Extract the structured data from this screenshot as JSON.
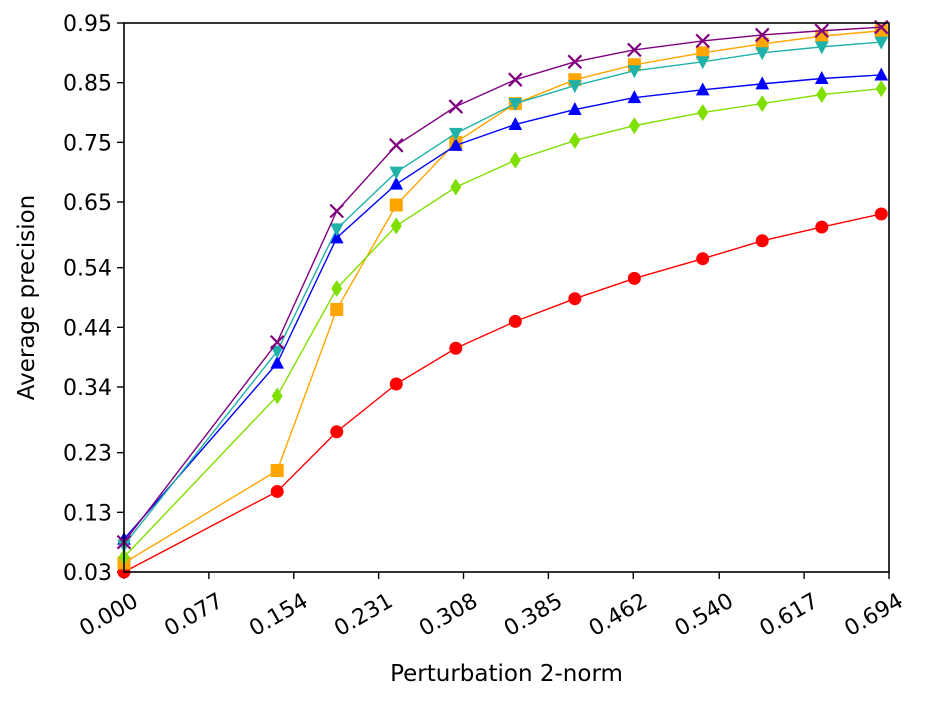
{
  "chart_data": {
    "type": "line",
    "title": "",
    "xlabel": "Perturbation 2-norm",
    "ylabel": "Average precision",
    "xlim": [
      0.0,
      0.694
    ],
    "ylim": [
      0.03,
      0.95
    ],
    "xticks": [
      "0.000",
      "0.077",
      "0.154",
      "0.231",
      "0.308",
      "0.385",
      "0.462",
      "0.540",
      "0.617",
      "0.694"
    ],
    "xtick_values": [
      0.0,
      0.077,
      0.154,
      0.231,
      0.308,
      0.385,
      0.462,
      0.54,
      0.617,
      0.694
    ],
    "yticks": [
      "0.03",
      "0.13",
      "0.23",
      "0.34",
      "0.44",
      "0.54",
      "0.65",
      "0.75",
      "0.85",
      "0.95"
    ],
    "ytick_values": [
      0.03,
      0.13,
      0.23,
      0.34,
      0.44,
      0.54,
      0.65,
      0.75,
      0.85,
      0.95
    ],
    "grid": false,
    "legend": "none",
    "x": [
      0.0,
      0.139,
      0.193,
      0.247,
      0.301,
      0.355,
      0.409,
      0.463,
      0.525,
      0.579,
      0.633,
      0.687
    ],
    "series": [
      {
        "name": "red circles",
        "color": "#ff0000",
        "marker": "circle",
        "values": [
          0.03,
          0.165,
          0.265,
          0.345,
          0.405,
          0.45,
          0.488,
          0.522,
          0.555,
          0.585,
          0.608,
          0.63
        ]
      },
      {
        "name": "orange squares",
        "color": "#ffa500",
        "marker": "square",
        "values": [
          0.045,
          0.2,
          0.47,
          0.645,
          0.75,
          0.815,
          0.855,
          0.88,
          0.9,
          0.915,
          0.928,
          0.937
        ]
      },
      {
        "name": "green diamonds",
        "color": "#7fe000",
        "marker": "diamond",
        "values": [
          0.055,
          0.325,
          0.505,
          0.61,
          0.675,
          0.72,
          0.753,
          0.778,
          0.8,
          0.815,
          0.83,
          0.84
        ]
      },
      {
        "name": "blue triangles up",
        "color": "#0000ff",
        "marker": "triangle-up",
        "values": [
          0.085,
          0.38,
          0.59,
          0.68,
          0.745,
          0.78,
          0.805,
          0.825,
          0.838,
          0.848,
          0.857,
          0.863
        ]
      },
      {
        "name": "cyan triangles down",
        "color": "#20b2aa",
        "marker": "triangle-down",
        "values": [
          0.075,
          0.4,
          0.605,
          0.7,
          0.765,
          0.815,
          0.845,
          0.87,
          0.885,
          0.9,
          0.91,
          0.918
        ]
      },
      {
        "name": "purple crosses",
        "color": "#800080",
        "marker": "x",
        "values": [
          0.08,
          0.415,
          0.635,
          0.745,
          0.81,
          0.855,
          0.885,
          0.905,
          0.92,
          0.93,
          0.937,
          0.943
        ]
      }
    ]
  }
}
